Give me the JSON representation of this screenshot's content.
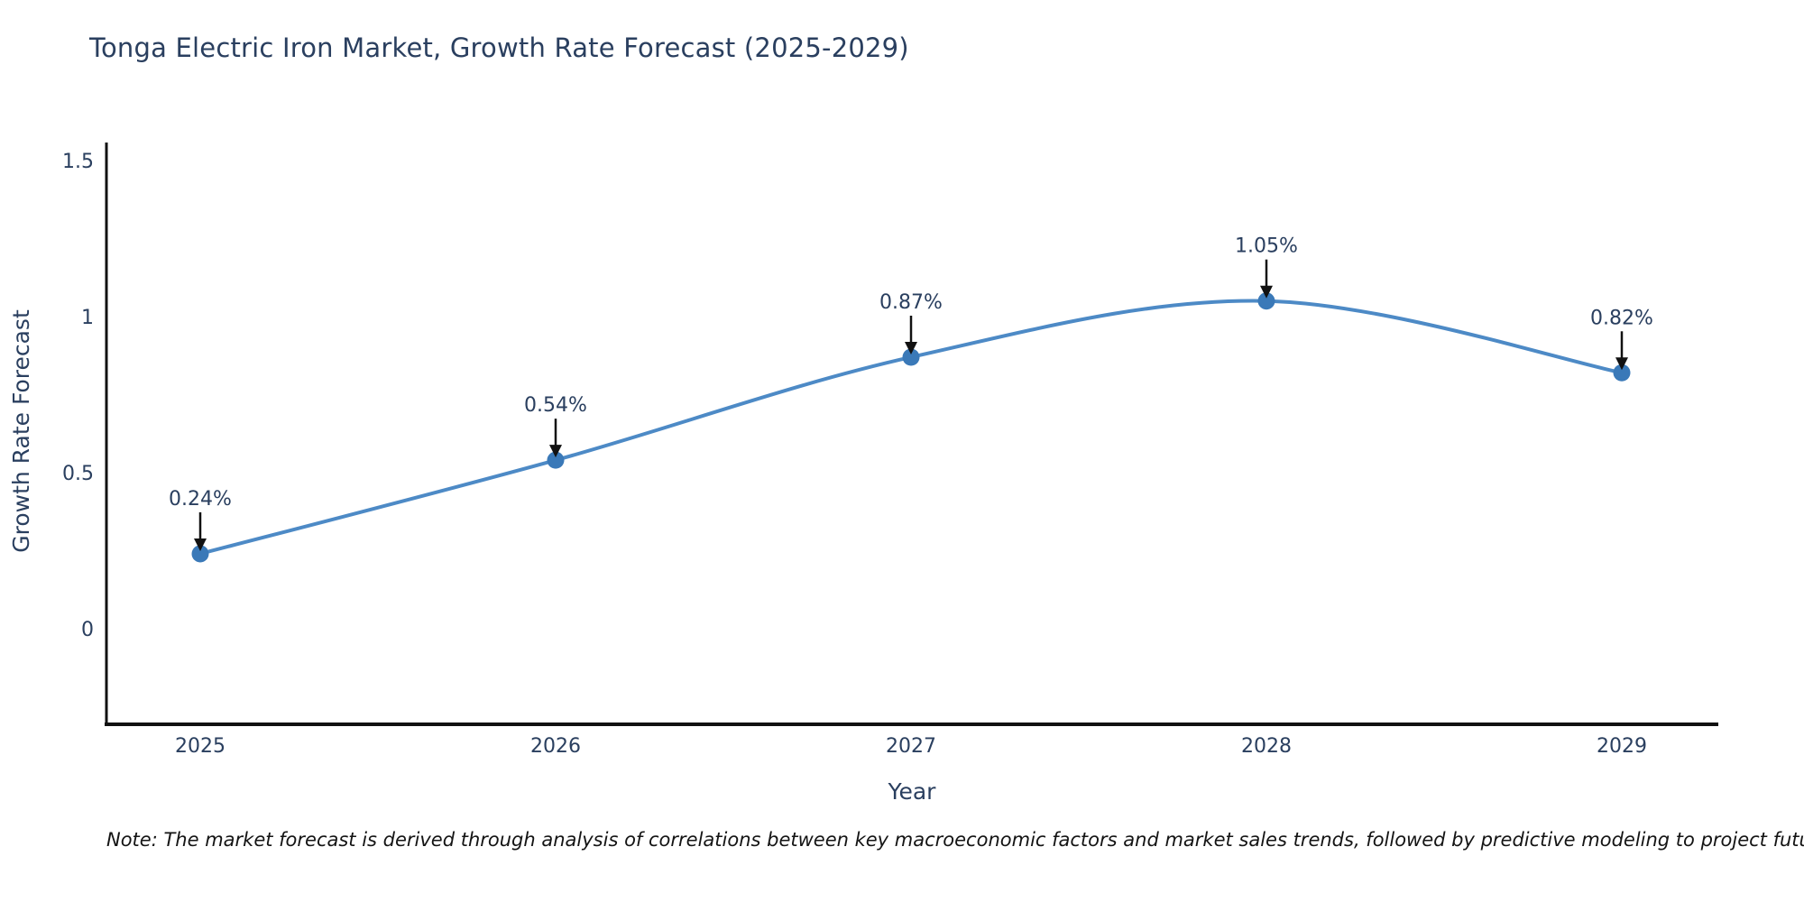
{
  "chart_data": {
    "type": "line",
    "title": "Tonga Electric Iron Market, Growth Rate Forecast (2025-2029)",
    "xlabel": "Year",
    "ylabel": "Growth Rate Forecast",
    "categories": [
      "2025",
      "2026",
      "2027",
      "2028",
      "2029"
    ],
    "series": [
      {
        "name": "Growth Rate Forecast",
        "values": [
          0.24,
          0.54,
          0.87,
          1.05,
          0.82
        ],
        "point_labels": [
          "0.24%",
          "0.54%",
          "0.87%",
          "1.05%",
          "0.82%"
        ]
      }
    ],
    "line_shape": "spline",
    "markers": true,
    "grid": false,
    "legend_position": "none",
    "yticks": [
      "0",
      "0.5",
      "1",
      "1.5"
    ],
    "ytick_values": [
      0,
      0.5,
      1,
      1.5
    ],
    "ylim": [
      -0.31,
      1.56
    ],
    "colors": {
      "line": "#4d8ac6",
      "marker": "#3a79b8",
      "axis": "#111111",
      "tick_text": "#2a3f5f",
      "annotation_text": "#2a3f5f",
      "annotation_arrow": "#111111"
    }
  },
  "note": {
    "text": "Note: The market forecast is derived through analysis of correlations between key macroeconomic factors and market sales trends, followed by predictive modeling to project future sales"
  }
}
